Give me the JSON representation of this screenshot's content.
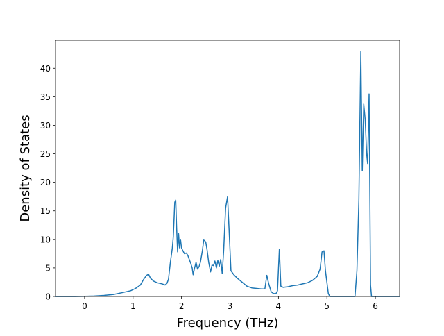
{
  "chart_data": {
    "type": "line",
    "title": "",
    "xlabel": "Frequency (THz)",
    "ylabel": "Density of States",
    "xlim": [
      -0.6,
      6.5
    ],
    "ylim": [
      0,
      44.9
    ],
    "grid": false,
    "line_color": "#1f77b4",
    "x_ticks": [
      0,
      1,
      2,
      3,
      4,
      5,
      6
    ],
    "y_ticks": [
      0,
      5,
      10,
      15,
      20,
      25,
      30,
      35,
      40
    ],
    "series": [
      {
        "name": "",
        "points": [
          [
            -0.6,
            0.0
          ],
          [
            -0.2,
            0.0
          ],
          [
            0.0,
            0.02
          ],
          [
            0.2,
            0.07
          ],
          [
            0.4,
            0.18
          ],
          [
            0.6,
            0.35
          ],
          [
            0.8,
            0.7
          ],
          [
            0.95,
            1.0
          ],
          [
            1.05,
            1.4
          ],
          [
            1.15,
            2.0
          ],
          [
            1.22,
            3.0
          ],
          [
            1.28,
            3.7
          ],
          [
            1.32,
            3.9
          ],
          [
            1.36,
            3.2
          ],
          [
            1.42,
            2.7
          ],
          [
            1.5,
            2.4
          ],
          [
            1.6,
            2.2
          ],
          [
            1.66,
            2.0
          ],
          [
            1.7,
            2.3
          ],
          [
            1.73,
            3.0
          ],
          [
            1.77,
            6.0
          ],
          [
            1.81,
            8.5
          ],
          [
            1.83,
            10.5
          ],
          [
            1.86,
            16.5
          ],
          [
            1.88,
            16.9
          ],
          [
            1.9,
            12.0
          ],
          [
            1.92,
            7.8
          ],
          [
            1.94,
            11.0
          ],
          [
            1.96,
            8.5
          ],
          [
            1.98,
            10.0
          ],
          [
            2.0,
            8.5
          ],
          [
            2.03,
            8.0
          ],
          [
            2.06,
            7.5
          ],
          [
            2.1,
            7.6
          ],
          [
            2.13,
            7.2
          ],
          [
            2.16,
            6.5
          ],
          [
            2.19,
            5.8
          ],
          [
            2.22,
            5.0
          ],
          [
            2.24,
            3.8
          ],
          [
            2.27,
            5.0
          ],
          [
            2.3,
            6.0
          ],
          [
            2.33,
            4.8
          ],
          [
            2.36,
            5.2
          ],
          [
            2.39,
            6.0
          ],
          [
            2.43,
            8.0
          ],
          [
            2.46,
            10.0
          ],
          [
            2.5,
            9.5
          ],
          [
            2.53,
            8.0
          ],
          [
            2.56,
            6.0
          ],
          [
            2.6,
            4.3
          ],
          [
            2.63,
            5.5
          ],
          [
            2.66,
            5.4
          ],
          [
            2.69,
            6.2
          ],
          [
            2.72,
            5.0
          ],
          [
            2.75,
            6.3
          ],
          [
            2.78,
            5.3
          ],
          [
            2.81,
            6.5
          ],
          [
            2.84,
            4.0
          ],
          [
            2.87,
            8.0
          ],
          [
            2.91,
            15.5
          ],
          [
            2.95,
            17.5
          ],
          [
            2.98,
            12.0
          ],
          [
            3.02,
            4.5
          ],
          [
            3.08,
            3.8
          ],
          [
            3.15,
            3.2
          ],
          [
            3.25,
            2.5
          ],
          [
            3.35,
            1.8
          ],
          [
            3.45,
            1.5
          ],
          [
            3.55,
            1.4
          ],
          [
            3.65,
            1.3
          ],
          [
            3.72,
            1.3
          ],
          [
            3.76,
            3.7
          ],
          [
            3.8,
            2.2
          ],
          [
            3.85,
            0.8
          ],
          [
            3.9,
            0.5
          ],
          [
            3.95,
            0.5
          ],
          [
            3.98,
            1.0
          ],
          [
            4.02,
            8.3
          ],
          [
            4.05,
            1.8
          ],
          [
            4.1,
            1.6
          ],
          [
            4.2,
            1.7
          ],
          [
            4.3,
            1.9
          ],
          [
            4.4,
            2.0
          ],
          [
            4.5,
            2.2
          ],
          [
            4.6,
            2.4
          ],
          [
            4.7,
            2.8
          ],
          [
            4.8,
            3.5
          ],
          [
            4.86,
            4.8
          ],
          [
            4.9,
            7.8
          ],
          [
            4.94,
            8.0
          ],
          [
            4.97,
            4.5
          ],
          [
            5.0,
            2.5
          ],
          [
            5.03,
            0.5
          ],
          [
            5.06,
            0.0
          ],
          [
            5.3,
            0.0
          ],
          [
            5.5,
            0.0
          ],
          [
            5.58,
            0.0
          ],
          [
            5.62,
            4.5
          ],
          [
            5.66,
            17.0
          ],
          [
            5.7,
            42.9
          ],
          [
            5.73,
            22.0
          ],
          [
            5.76,
            33.7
          ],
          [
            5.79,
            31.0
          ],
          [
            5.82,
            25.0
          ],
          [
            5.84,
            23.3
          ],
          [
            5.87,
            35.5
          ],
          [
            5.9,
            2.0
          ],
          [
            5.92,
            0.0
          ],
          [
            6.1,
            0.0
          ],
          [
            6.5,
            0.0
          ]
        ]
      }
    ]
  }
}
